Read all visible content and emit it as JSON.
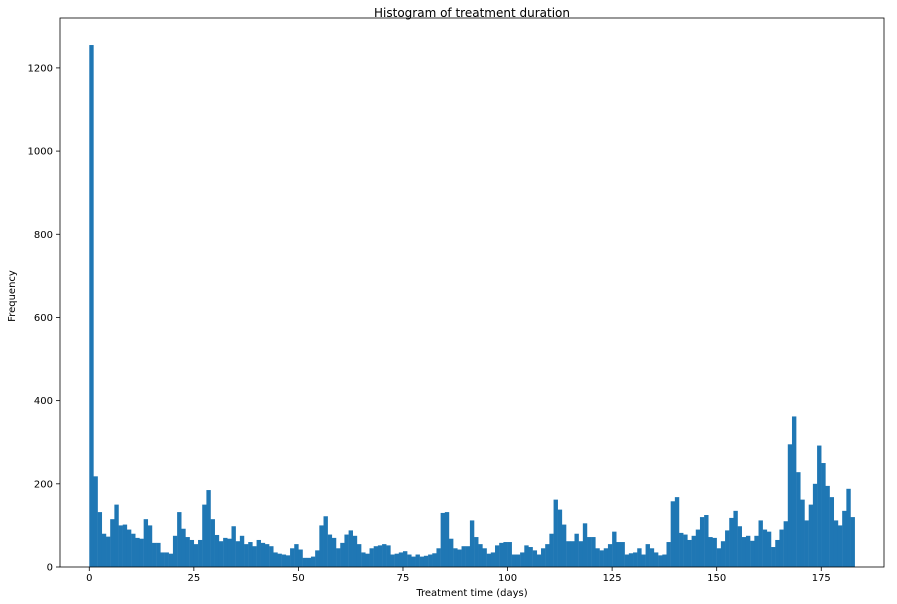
{
  "chart_data": {
    "type": "bar",
    "title": "Histogram of treatment duration",
    "xlabel": "Treatment time (days)",
    "ylabel": "Frequency",
    "xlim": [
      -7,
      190
    ],
    "ylim": [
      0,
      1320
    ],
    "x_ticks": [
      0,
      25,
      50,
      75,
      100,
      125,
      150,
      175
    ],
    "y_ticks": [
      0,
      200,
      400,
      600,
      800,
      1000,
      1200
    ],
    "grid": false,
    "legend": "none",
    "bin_start": 0,
    "bin_width": 1,
    "bar_color": "#1f77b4",
    "values": [
      1255,
      218,
      132,
      80,
      73,
      115,
      150,
      100,
      102,
      90,
      80,
      70,
      68,
      115,
      100,
      58,
      58,
      35,
      35,
      32,
      75,
      132,
      92,
      72,
      65,
      55,
      65,
      150,
      185,
      115,
      77,
      62,
      70,
      68,
      98,
      62,
      75,
      55,
      60,
      50,
      65,
      58,
      55,
      50,
      35,
      32,
      30,
      28,
      45,
      55,
      42,
      22,
      22,
      25,
      40,
      100,
      122,
      78,
      70,
      45,
      58,
      78,
      88,
      75,
      55,
      35,
      32,
      45,
      50,
      52,
      55,
      52,
      30,
      32,
      35,
      38,
      30,
      25,
      30,
      25,
      27,
      30,
      33,
      45,
      130,
      132,
      68,
      45,
      42,
      50,
      50,
      112,
      72,
      55,
      45,
      32,
      35,
      52,
      58,
      60,
      60,
      30,
      30,
      35,
      52,
      48,
      40,
      30,
      45,
      55,
      80,
      162,
      138,
      102,
      62,
      62,
      80,
      62,
      105,
      72,
      72,
      45,
      40,
      45,
      55,
      85,
      60,
      60,
      30,
      33,
      35,
      45,
      30,
      55,
      45,
      35,
      28,
      30,
      60,
      158,
      168,
      82,
      78,
      65,
      75,
      90,
      120,
      125,
      72,
      70,
      45,
      62,
      88,
      118,
      135,
      98,
      72,
      75,
      63,
      75,
      112,
      90,
      85,
      48,
      65,
      90,
      110,
      295,
      362,
      228,
      162,
      112,
      150,
      200,
      292,
      250,
      195,
      168,
      112,
      100,
      135,
      188,
      120
    ]
  }
}
